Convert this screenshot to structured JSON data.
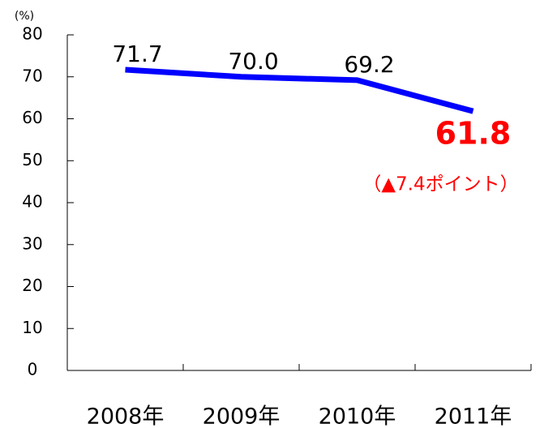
{
  "chart_data": {
    "type": "line",
    "y_unit": "(%)",
    "categories": [
      "2008年",
      "2009年",
      "2010年",
      "2011年"
    ],
    "series": [
      {
        "color": "#0000ff",
        "values": [
          71.7,
          70.0,
          69.2,
          61.8
        ],
        "value_labels": [
          "71.7",
          "70.0",
          "69.2",
          "61.8"
        ],
        "highlight_color": "#ff0000"
      }
    ],
    "annotations": [
      {
        "text": "（▲7.4ポイント）",
        "color": "#ff0000"
      }
    ],
    "ylim": [
      0,
      80
    ],
    "yticks": [
      0,
      10,
      20,
      30,
      40,
      50,
      60,
      70,
      80
    ],
    "grid": false
  }
}
